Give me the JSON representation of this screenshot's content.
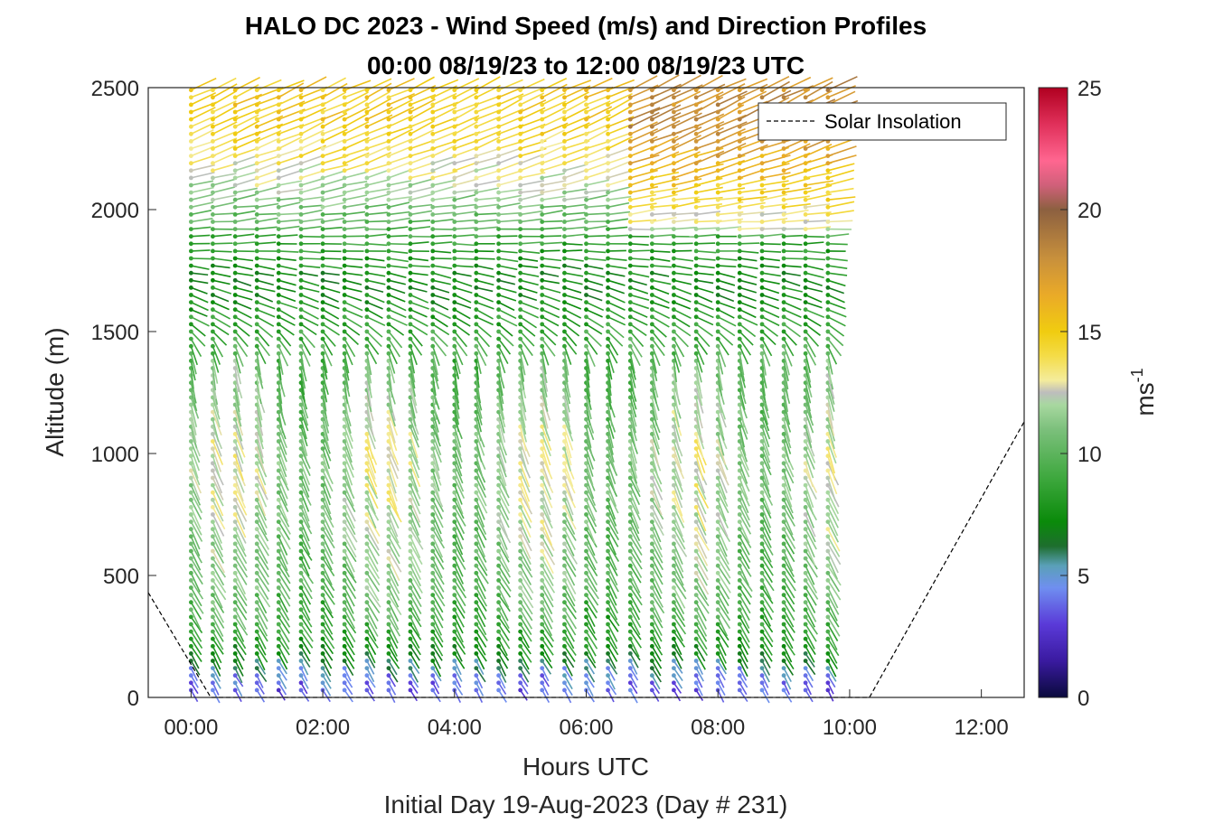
{
  "chart_data": {
    "type": "wind-barb-profile",
    "title": "HALO DC 2023 - Wind Speed (m/s) and Direction Profiles",
    "subtitle": "00:00 08/19/23 to 12:00 08/19/23  UTC",
    "xlabel": "Hours UTC",
    "xlabel2": "Initial Day 19-Aug-2023 (Day # 231)",
    "ylabel": "Altitude (m)",
    "xlim": [
      -0.65,
      12.65
    ],
    "ylim": [
      0,
      2500
    ],
    "x_ticks": [
      0,
      2,
      4,
      6,
      8,
      10,
      12
    ],
    "x_tick_labels": [
      "00:00",
      "02:00",
      "04:00",
      "06:00",
      "08:00",
      "10:00",
      "12:00"
    ],
    "y_ticks": [
      0,
      500,
      1000,
      1500,
      2000,
      2500
    ],
    "y_tick_labels": [
      "0",
      "500",
      "1000",
      "1500",
      "2000",
      "2500"
    ],
    "profile_times_h": [
      0.0,
      0.33,
      0.67,
      1.0,
      1.33,
      1.67,
      2.0,
      2.33,
      2.67,
      3.0,
      3.33,
      3.67,
      4.0,
      4.33,
      4.67,
      5.0,
      5.33,
      5.67,
      6.0,
      6.33,
      6.67,
      7.0,
      7.33,
      7.67,
      8.0,
      8.33,
      8.67,
      9.0,
      9.33,
      9.67
    ],
    "altitude_step_m": 30,
    "altitude_max_m": 2490,
    "speed_profile_typical": {
      "altitude_m": [
        30,
        100,
        200,
        300,
        500,
        800,
        1000,
        1200,
        1400,
        1550,
        1650,
        1750,
        1850,
        1950,
        2050,
        2200,
        2350,
        2490
      ],
      "speed_ms": [
        3.5,
        4.5,
        7.5,
        9.0,
        10.5,
        11.5,
        12.0,
        11.0,
        10.0,
        8.5,
        7.5,
        7.5,
        8.5,
        10.0,
        11.5,
        13.5,
        15.0,
        15.0
      ],
      "direction_deg": [
        330,
        330,
        330,
        330,
        330,
        335,
        340,
        345,
        350,
        300,
        290,
        280,
        270,
        265,
        260,
        250,
        245,
        245
      ]
    },
    "series": [
      {
        "name": "Solar Insolation",
        "style": "dashed",
        "color": "#000000",
        "x": [
          -0.65,
          0.3,
          10.3,
          12.65
        ],
        "y": [
          430,
          0,
          0,
          1130
        ]
      }
    ],
    "legend": {
      "entries": [
        "Solar Insolation"
      ],
      "placement": "top-right"
    },
    "colorbar": {
      "label": "ms",
      "label_superscript": "-1",
      "range": [
        0,
        25
      ],
      "ticks": [
        0,
        5,
        10,
        15,
        20,
        25
      ],
      "tick_labels": [
        "0",
        "5",
        "10",
        "15",
        "20",
        "25"
      ],
      "stops": [
        {
          "v": 0,
          "c": "#0a0a3c"
        },
        {
          "v": 1.5,
          "c": "#3a1aa0"
        },
        {
          "v": 3,
          "c": "#5a3ad8"
        },
        {
          "v": 4.5,
          "c": "#6f8ff0"
        },
        {
          "v": 5.4,
          "c": "#5aa0b8"
        },
        {
          "v": 6.2,
          "c": "#1e6e2e"
        },
        {
          "v": 7.2,
          "c": "#0a8a0a"
        },
        {
          "v": 9,
          "c": "#3ea83e"
        },
        {
          "v": 11,
          "c": "#7cc07c"
        },
        {
          "v": 12,
          "c": "#a8d8a0"
        },
        {
          "v": 12.5,
          "c": "#bdbdbd"
        },
        {
          "v": 13,
          "c": "#f4ec9c"
        },
        {
          "v": 14,
          "c": "#f4dc48"
        },
        {
          "v": 15,
          "c": "#f0cc10"
        },
        {
          "v": 16.5,
          "c": "#eaaa28"
        },
        {
          "v": 18,
          "c": "#c8903c"
        },
        {
          "v": 20,
          "c": "#8c6040"
        },
        {
          "v": 21,
          "c": "#d0607a"
        },
        {
          "v": 22,
          "c": "#ff6690"
        },
        {
          "v": 23.5,
          "c": "#e0305a"
        },
        {
          "v": 25,
          "c": "#b00020"
        }
      ]
    }
  }
}
